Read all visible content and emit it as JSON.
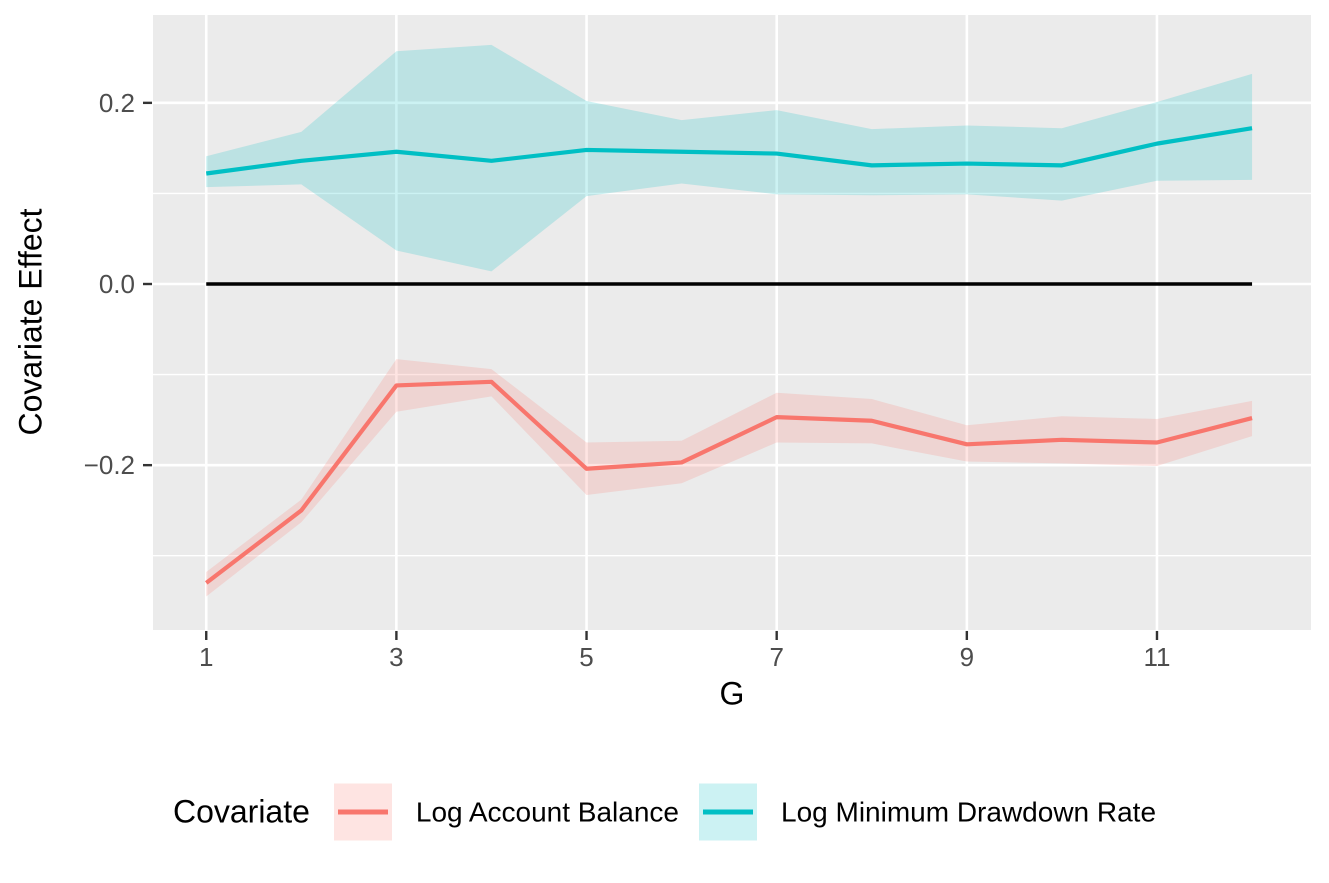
{
  "chart_data": {
    "type": "line",
    "title": "",
    "xlabel": "G",
    "ylabel": "Covariate Effect",
    "x": [
      1,
      2,
      3,
      4,
      5,
      6,
      7,
      8,
      9,
      10,
      11,
      12
    ],
    "x_ticks": [
      1,
      3,
      5,
      7,
      9,
      11
    ],
    "x_tick_labels": [
      "1",
      "3",
      "5",
      "7",
      "9",
      "11"
    ],
    "y_ticks": [
      -0.2,
      0.0,
      0.2
    ],
    "y_tick_labels": [
      "−0.2",
      "0.0",
      "0.2"
    ],
    "y_minor_ticks": [
      -0.3,
      -0.1,
      0.1
    ],
    "xlim": [
      0.44,
      12.62
    ],
    "ylim": [
      -0.382,
      0.297
    ],
    "grid": "horizontal major+minor, vertical major only",
    "legend_position": "bottom",
    "legend_title": "Covariate",
    "zero_line": {
      "y": 0.0,
      "x_start": 1,
      "x_end": 12,
      "color": "#000000"
    },
    "panel_bg": "#EBEBEB",
    "grid_color": "#FFFFFF",
    "tick_color": "#333333",
    "tick_label_color": "#4D4D4D",
    "ribbon_alpha": 0.2,
    "series": [
      {
        "name": "Log Account Balance",
        "color": "#F8766D",
        "values": [
          -0.33,
          -0.25,
          -0.112,
          -0.108,
          -0.204,
          -0.197,
          -0.147,
          -0.151,
          -0.177,
          -0.172,
          -0.175,
          -0.148
        ],
        "upper": [
          -0.318,
          -0.238,
          -0.083,
          -0.094,
          -0.175,
          -0.173,
          -0.12,
          -0.127,
          -0.156,
          -0.146,
          -0.149,
          -0.129
        ],
        "lower": [
          -0.345,
          -0.263,
          -0.141,
          -0.124,
          -0.233,
          -0.22,
          -0.175,
          -0.176,
          -0.196,
          -0.198,
          -0.201,
          -0.168
        ]
      },
      {
        "name": "Log Minimum Drawdown Rate",
        "color": "#00BFC4",
        "values": [
          0.122,
          0.136,
          0.146,
          0.136,
          0.148,
          0.146,
          0.144,
          0.131,
          0.133,
          0.131,
          0.155,
          0.172
        ],
        "upper": [
          0.141,
          0.168,
          0.257,
          0.264,
          0.202,
          0.181,
          0.192,
          0.171,
          0.175,
          0.172,
          0.201,
          0.232
        ],
        "lower": [
          0.107,
          0.11,
          0.037,
          0.014,
          0.097,
          0.111,
          0.099,
          0.098,
          0.099,
          0.092,
          0.114,
          0.115
        ]
      }
    ]
  }
}
